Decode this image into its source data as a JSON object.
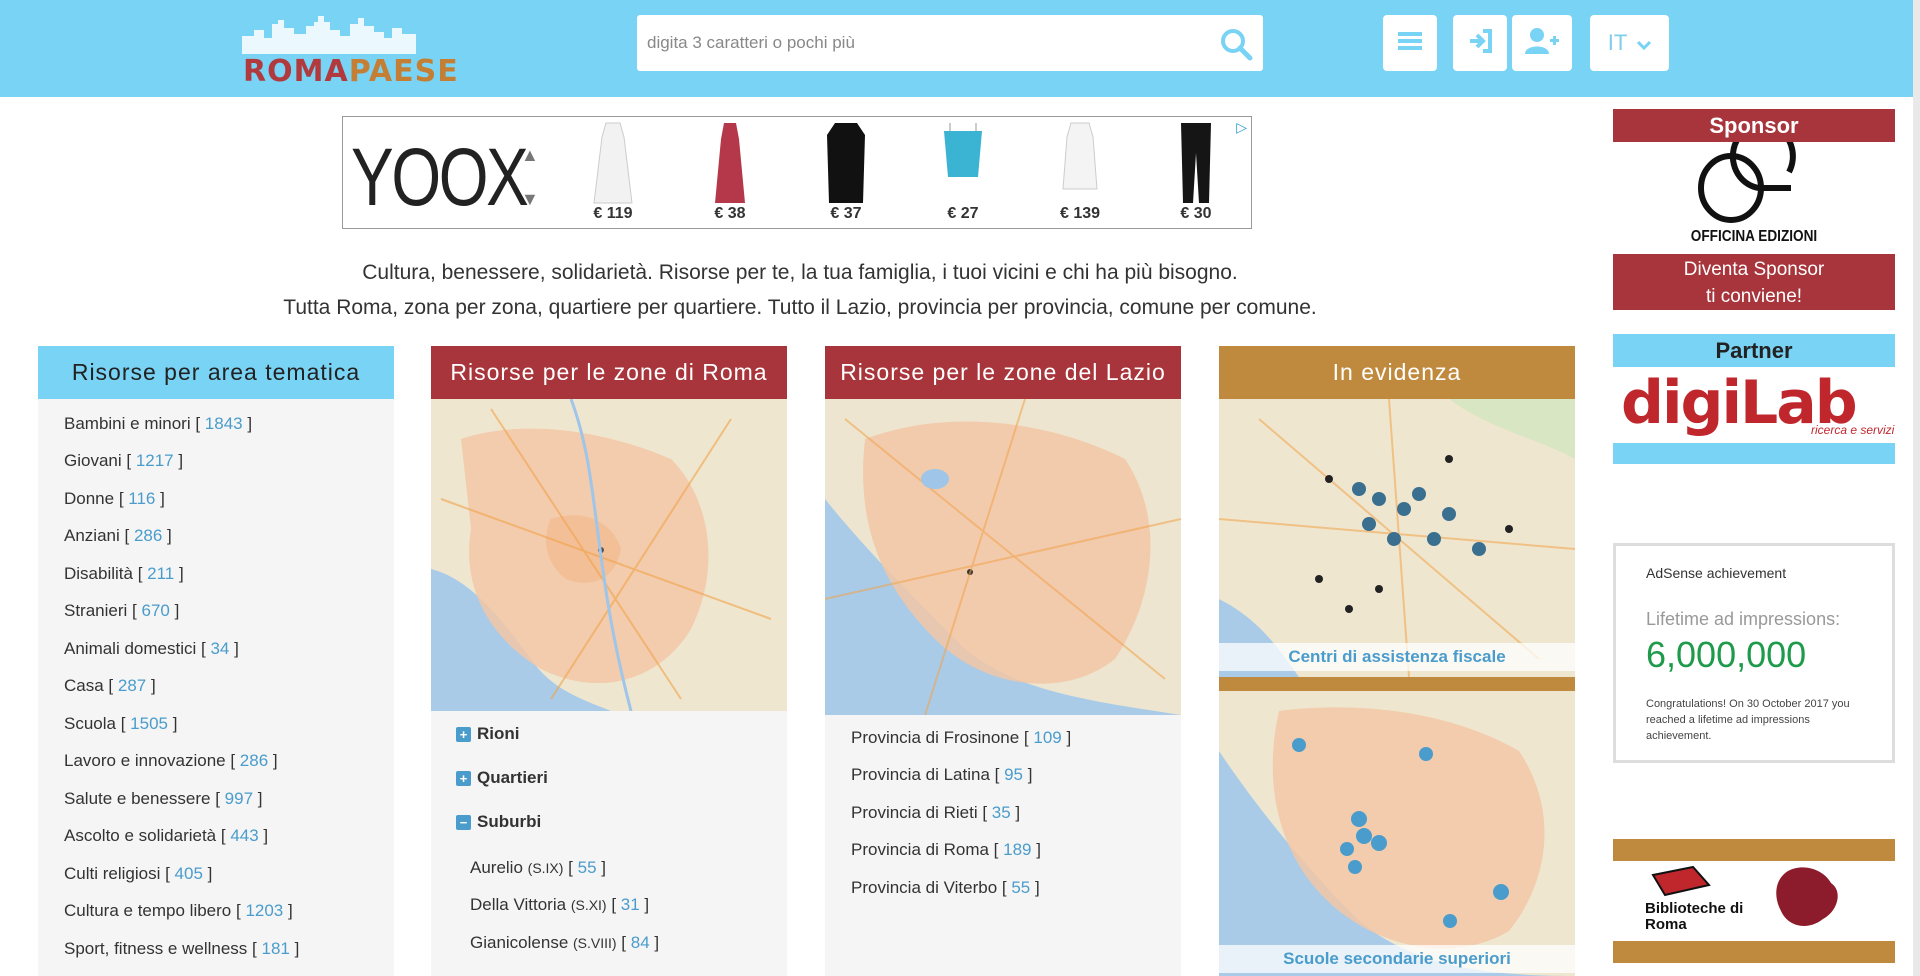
{
  "header": {
    "logo": {
      "part1": "ROMA",
      "part2": "PAESE"
    },
    "search": {
      "placeholder": "digita 3 caratteri o pochi più"
    },
    "icons": [
      "menu-icon",
      "login-icon",
      "add-user-icon"
    ],
    "language": "IT"
  },
  "ad": {
    "brand": "YOOX",
    "prices": [
      "€ 119",
      "€ 38",
      "€ 37",
      "€ 27",
      "€ 139",
      "€ 30"
    ]
  },
  "tagline": {
    "line1": "Cultura, benessere, solidarietà. Risorse per te, la tua famiglia, i tuoi vicini e chi ha più bisogno.",
    "line2": "Tutta Roma, zona per zona, quartiere per quartiere. Tutto il Lazio, provincia per provincia, comune per comune."
  },
  "columns": {
    "tematica": {
      "title": "Risorse per area tematica",
      "items": [
        {
          "label": "Bambini e minori",
          "count": "1843"
        },
        {
          "label": "Giovani",
          "count": "1217"
        },
        {
          "label": "Donne",
          "count": "116"
        },
        {
          "label": "Anziani",
          "count": "286"
        },
        {
          "label": "Disabilità",
          "count": "211"
        },
        {
          "label": "Stranieri",
          "count": "670"
        },
        {
          "label": "Animali domestici",
          "count": "34"
        },
        {
          "label": "Casa",
          "count": "287"
        },
        {
          "label": "Scuola",
          "count": "1505"
        },
        {
          "label": "Lavoro e innovazione",
          "count": "286"
        },
        {
          "label": "Salute e benessere",
          "count": "997"
        },
        {
          "label": "Ascolto e solidarietà",
          "count": "443"
        },
        {
          "label": "Culti religiosi",
          "count": "405"
        },
        {
          "label": "Cultura e tempo libero",
          "count": "1203"
        },
        {
          "label": "Sport, fitness e wellness",
          "count": "181"
        }
      ]
    },
    "roma": {
      "title": "Risorse per le zone di Roma",
      "accordions": [
        {
          "label": "Rioni",
          "state": "+"
        },
        {
          "label": "Quartieri",
          "state": "+"
        },
        {
          "label": "Suburbi",
          "state": "−"
        }
      ],
      "suburbi": [
        {
          "label": "Aurelio",
          "code": "(S.IX)",
          "count": "55"
        },
        {
          "label": "Della Vittoria",
          "code": "(S.XI)",
          "count": "31"
        },
        {
          "label": "Gianicolense",
          "code": "(S.VIII)",
          "count": "84"
        }
      ]
    },
    "lazio": {
      "title": "Risorse per le zone del Lazio",
      "provinces": [
        {
          "label": "Provincia di Frosinone",
          "count": "109"
        },
        {
          "label": "Provincia di Latina",
          "count": "95"
        },
        {
          "label": "Provincia di Rieti",
          "count": "35"
        },
        {
          "label": "Provincia di Roma",
          "count": "189"
        },
        {
          "label": "Provincia di Viterbo",
          "count": "55"
        }
      ]
    },
    "evidenza": {
      "title": "In evidenza",
      "cards": [
        "Centri di assistenza fiscale",
        "Scuole secondarie superiori"
      ]
    }
  },
  "sidebar": {
    "sponsor_title": "Sponsor",
    "sponsor_logo": "OFFICINA EDIZIONI",
    "sponsor_cta_1": "Diventa Sponsor",
    "sponsor_cta_2": "ti conviene!",
    "partner_title": "Partner",
    "partner_logo": "digiLab",
    "partner_sub": "ricerca e servizi",
    "adsense": {
      "title": "AdSense achievement",
      "label": "Lifetime ad impressions:",
      "value": "6,000,000",
      "note": "Congratulations! On 30 October 2017 you reached a lifetime ad impressions achievement."
    },
    "biblioteche": "Biblioteche di Roma"
  },
  "colors": {
    "header_bg": "#79d3f4",
    "red": "#a8353b",
    "gold": "#c08a3e",
    "link": "#4a9ccc"
  }
}
